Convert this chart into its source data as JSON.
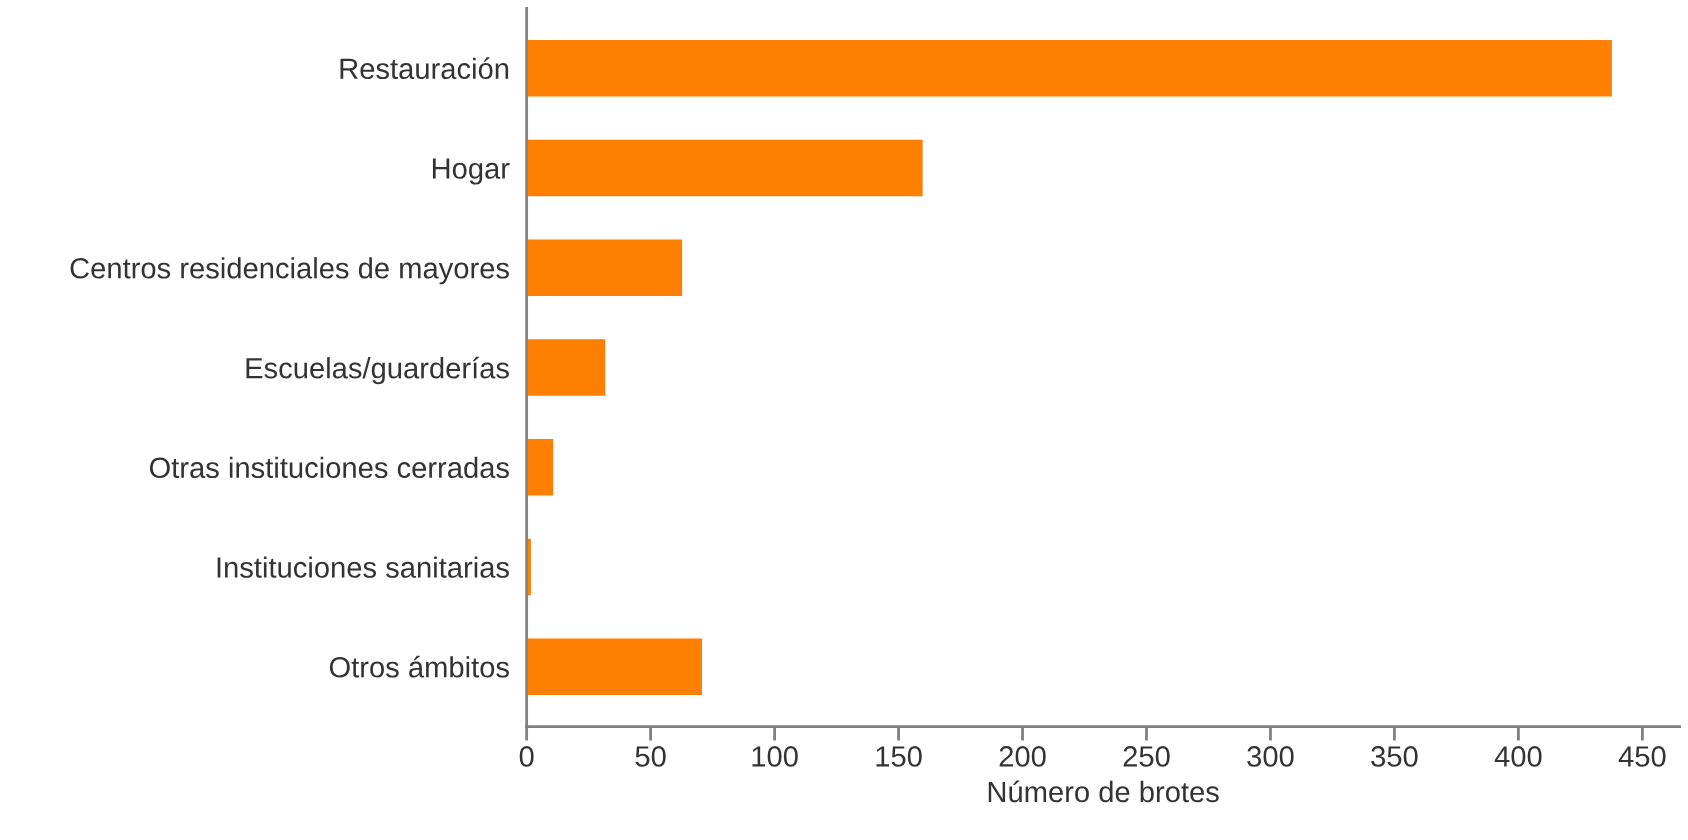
{
  "chart_data": {
    "type": "bar",
    "orientation": "horizontal",
    "xlabel": "Número de brotes",
    "categories": [
      "Restauración",
      "Hogar",
      "Centros residenciales de mayores",
      "Escuelas/guarderías",
      "Otras instituciones cerradas",
      "Instituciones sanitarias",
      "Otros ámbitos"
    ],
    "values": [
      438,
      160,
      63,
      32,
      11,
      2,
      71
    ],
    "color": "#ff8000",
    "xlim": [
      0,
      465
    ],
    "xticks": [
      0,
      50,
      100,
      150,
      200,
      250,
      300,
      350,
      400,
      450
    ],
    "grid": false
  }
}
